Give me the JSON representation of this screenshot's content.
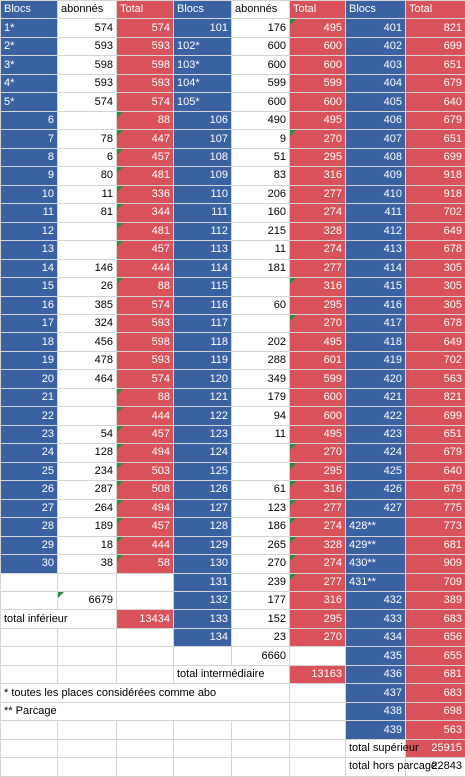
{
  "headers": [
    "Blocs",
    "abonnés",
    "Total",
    "Blocs",
    "abonnés",
    "Total",
    "Blocs",
    "Total"
  ],
  "inferieur": [
    {
      "bloc": "1*",
      "abo": "574",
      "total": "574"
    },
    {
      "bloc": "2*",
      "abo": "593",
      "total": "593"
    },
    {
      "bloc": "3*",
      "abo": "598",
      "total": "598"
    },
    {
      "bloc": "4*",
      "abo": "593",
      "total": "593"
    },
    {
      "bloc": "5*",
      "abo": "574",
      "total": "574"
    },
    {
      "bloc": "6",
      "abo": "",
      "total": "88"
    },
    {
      "bloc": "7",
      "abo": "78",
      "total": "447"
    },
    {
      "bloc": "8",
      "abo": "6",
      "total": "457"
    },
    {
      "bloc": "9",
      "abo": "80",
      "total": "481"
    },
    {
      "bloc": "10",
      "abo": "11",
      "total": "336"
    },
    {
      "bloc": "11",
      "abo": "81",
      "total": "344"
    },
    {
      "bloc": "12",
      "abo": "",
      "total": "481"
    },
    {
      "bloc": "13",
      "abo": "",
      "total": "457"
    },
    {
      "bloc": "14",
      "abo": "146",
      "total": "444"
    },
    {
      "bloc": "15",
      "abo": "26",
      "total": "88"
    },
    {
      "bloc": "16",
      "abo": "385",
      "total": "574"
    },
    {
      "bloc": "17",
      "abo": "324",
      "total": "593"
    },
    {
      "bloc": "18",
      "abo": "456",
      "total": "598"
    },
    {
      "bloc": "19",
      "abo": "478",
      "total": "593"
    },
    {
      "bloc": "20",
      "abo": "464",
      "total": "574"
    },
    {
      "bloc": "21",
      "abo": "",
      "total": "88"
    },
    {
      "bloc": "22",
      "abo": "",
      "total": "444"
    },
    {
      "bloc": "23",
      "abo": "54",
      "total": "457"
    },
    {
      "bloc": "24",
      "abo": "128",
      "total": "494"
    },
    {
      "bloc": "25",
      "abo": "234",
      "total": "503"
    },
    {
      "bloc": "26",
      "abo": "287",
      "total": "508"
    },
    {
      "bloc": "27",
      "abo": "264",
      "total": "494"
    },
    {
      "bloc": "28",
      "abo": "189",
      "total": "457"
    },
    {
      "bloc": "29",
      "abo": "18",
      "total": "444"
    },
    {
      "bloc": "30",
      "abo": "38",
      "total": "58"
    }
  ],
  "intermediaire": [
    {
      "bloc": "101",
      "abo": "176",
      "total": "495"
    },
    {
      "bloc": "102*",
      "abo": "600",
      "total": "600"
    },
    {
      "bloc": "103*",
      "abo": "600",
      "total": "600"
    },
    {
      "bloc": "104*",
      "abo": "599",
      "total": "599"
    },
    {
      "bloc": "105*",
      "abo": "600",
      "total": "600"
    },
    {
      "bloc": "106",
      "abo": "490",
      "total": "495"
    },
    {
      "bloc": "107",
      "abo": "9",
      "total": "270"
    },
    {
      "bloc": "108",
      "abo": "51",
      "total": "295"
    },
    {
      "bloc": "109",
      "abo": "83",
      "total": "316"
    },
    {
      "bloc": "110",
      "abo": "206",
      "total": "277"
    },
    {
      "bloc": "111",
      "abo": "160",
      "total": "274"
    },
    {
      "bloc": "112",
      "abo": "215",
      "total": "328"
    },
    {
      "bloc": "113",
      "abo": "11",
      "total": "274"
    },
    {
      "bloc": "114",
      "abo": "181",
      "total": "277"
    },
    {
      "bloc": "115",
      "abo": "",
      "total": "316"
    },
    {
      "bloc": "116",
      "abo": "60",
      "total": "295"
    },
    {
      "bloc": "117",
      "abo": "",
      "total": "270"
    },
    {
      "bloc": "118",
      "abo": "202",
      "total": "495"
    },
    {
      "bloc": "119",
      "abo": "288",
      "total": "601"
    },
    {
      "bloc": "120",
      "abo": "349",
      "total": "599"
    },
    {
      "bloc": "121",
      "abo": "179",
      "total": "600"
    },
    {
      "bloc": "122",
      "abo": "94",
      "total": "600"
    },
    {
      "bloc": "123",
      "abo": "11",
      "total": "495"
    },
    {
      "bloc": "124",
      "abo": "",
      "total": "270"
    },
    {
      "bloc": "125",
      "abo": "",
      "total": "295"
    },
    {
      "bloc": "126",
      "abo": "61",
      "total": "316"
    },
    {
      "bloc": "127",
      "abo": "123",
      "total": "277"
    },
    {
      "bloc": "128",
      "abo": "186",
      "total": "274"
    },
    {
      "bloc": "129",
      "abo": "265",
      "total": "328"
    },
    {
      "bloc": "130",
      "abo": "270",
      "total": "274"
    },
    {
      "bloc": "131",
      "abo": "239",
      "total": "277"
    },
    {
      "bloc": "132",
      "abo": "177",
      "total": "316"
    },
    {
      "bloc": "133",
      "abo": "152",
      "total": "295"
    },
    {
      "bloc": "134",
      "abo": "23",
      "total": "270"
    }
  ],
  "superieur": [
    {
      "bloc": "401",
      "total": "821"
    },
    {
      "bloc": "402",
      "total": "699"
    },
    {
      "bloc": "403",
      "total": "651"
    },
    {
      "bloc": "404",
      "total": "679"
    },
    {
      "bloc": "405",
      "total": "640"
    },
    {
      "bloc": "406",
      "total": "679"
    },
    {
      "bloc": "407",
      "total": "651"
    },
    {
      "bloc": "408",
      "total": "699"
    },
    {
      "bloc": "409",
      "total": "918"
    },
    {
      "bloc": "410",
      "total": "918"
    },
    {
      "bloc": "411",
      "total": "702"
    },
    {
      "bloc": "412",
      "total": "649"
    },
    {
      "bloc": "413",
      "total": "678"
    },
    {
      "bloc": "414",
      "total": "305"
    },
    {
      "bloc": "415",
      "total": "305"
    },
    {
      "bloc": "416",
      "total": "305"
    },
    {
      "bloc": "417",
      "total": "678"
    },
    {
      "bloc": "418",
      "total": "649"
    },
    {
      "bloc": "419",
      "total": "702"
    },
    {
      "bloc": "420",
      "total": "563"
    },
    {
      "bloc": "421",
      "total": "821"
    },
    {
      "bloc": "422",
      "total": "699"
    },
    {
      "bloc": "423",
      "total": "651"
    },
    {
      "bloc": "424",
      "total": "679"
    },
    {
      "bloc": "425",
      "total": "640"
    },
    {
      "bloc": "426",
      "total": "679"
    },
    {
      "bloc": "427",
      "total": "775"
    },
    {
      "bloc": "428**",
      "total": "773"
    },
    {
      "bloc": "429**",
      "total": "681"
    },
    {
      "bloc": "430**",
      "total": "909"
    },
    {
      "bloc": "431**",
      "total": "709"
    },
    {
      "bloc": "432",
      "total": "389"
    },
    {
      "bloc": "433",
      "total": "683"
    },
    {
      "bloc": "434",
      "total": "656"
    },
    {
      "bloc": "435",
      "total": "655"
    },
    {
      "bloc": "436",
      "total": "681"
    },
    {
      "bloc": "437",
      "total": "683"
    },
    {
      "bloc": "438",
      "total": "698"
    },
    {
      "bloc": "439",
      "total": "563"
    }
  ],
  "sum_abo_inferieur": "6679",
  "sum_abo_intermediaire": "6660",
  "total_inferieur": {
    "label": "total inférieur",
    "value": "13434"
  },
  "total_intermediaire": {
    "label": "total intermédiaire",
    "value": "13163"
  },
  "total_superieur": {
    "label": "total supérieur",
    "value": "25915"
  },
  "total_hors_parcage": {
    "label": "total hors parcage",
    "value": "22843"
  },
  "notes": {
    "abo": "* toutes les places considérées comme abo",
    "parcage": "** Parcage"
  },
  "colors": {
    "blue": "#3a62a2",
    "red": "#d9525a",
    "marker": "#2e8b3e"
  }
}
